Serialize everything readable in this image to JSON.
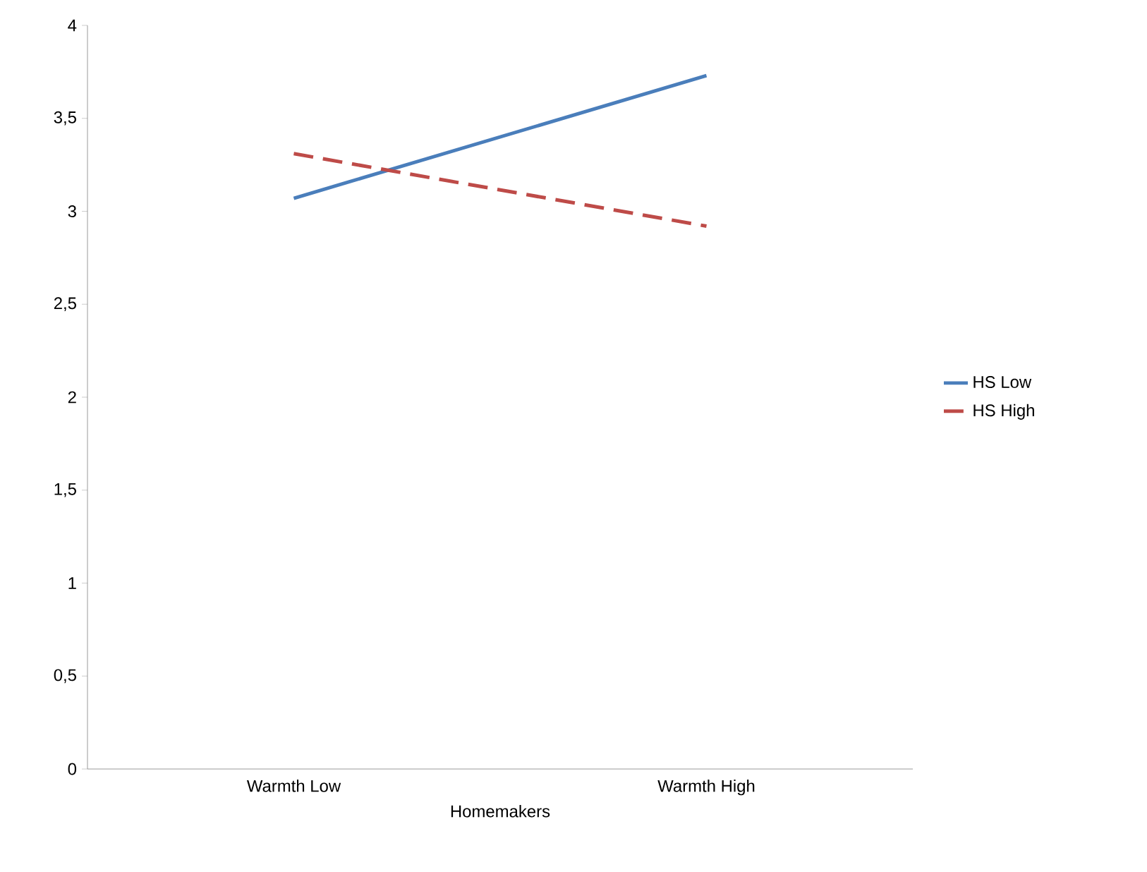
{
  "chart_data": {
    "type": "line",
    "xlabel": "Homemakers",
    "categories": [
      "Warmth Low",
      "Warmth High"
    ],
    "series": [
      {
        "name": "HS Low",
        "color": "#4a7ebb",
        "values": [
          3.07,
          3.73
        ],
        "line_style": "solid"
      },
      {
        "name": "HS High",
        "color": "#be4b48",
        "values": [
          3.31,
          2.92
        ],
        "line_style": "dashed"
      }
    ],
    "ylim": [
      0,
      4
    ],
    "yticks": [
      0,
      {
        "value": 0.5,
        "label": "0,5"
      },
      1,
      {
        "value": 1.5,
        "label": "1,5"
      },
      2,
      {
        "value": 2.5,
        "label": "2,5"
      },
      3,
      {
        "value": 3.5,
        "label": "3,5"
      },
      4
    ],
    "grid": false,
    "legend": "right",
    "marker": "none"
  }
}
